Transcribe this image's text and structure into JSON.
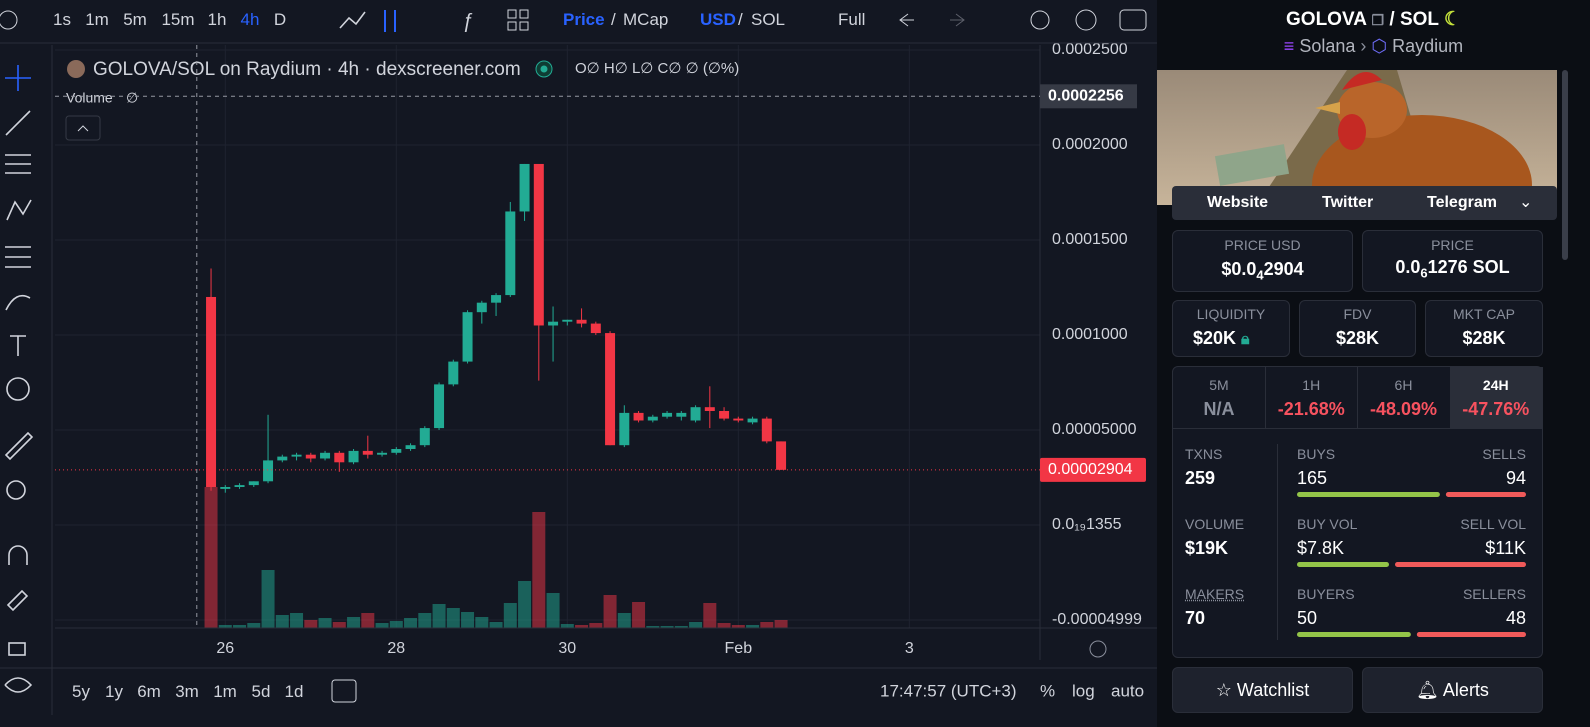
{
  "toolbar": {
    "intervals": [
      "1s",
      "1m",
      "5m",
      "15m",
      "1h",
      "4h",
      "D"
    ],
    "active_interval": 5,
    "price": "Price",
    "slash_1": "/",
    "mcap": "MCap",
    "usd": "USD",
    "slash_2": "/",
    "sol": "SOL",
    "full": "Full"
  },
  "chart": {
    "type": "candlestick",
    "title": "GOLOVA/SOL on Raydium · 4h · dexscreener.com",
    "ohlc_legend": "O∅ H∅ L∅ C∅ ∅ (∅%)",
    "volume_label": "Volume",
    "volume_value": "∅",
    "up_color": "#22ab94",
    "down_color": "#f23645",
    "grid": true,
    "open": [
      0.00012,
      1.9e-05,
      2e-05,
      2.1e-05,
      2.3e-05,
      3.4e-05,
      3.6e-05,
      3.7e-05,
      3.5e-05,
      3.8e-05,
      3.3e-05,
      3.9e-05,
      3.7e-05,
      3.8e-05,
      4e-05,
      4.2e-05,
      5.1e-05,
      7.4e-05,
      8.6e-05,
      0.000112,
      0.000117,
      0.000121,
      0.000165,
      0.00019,
      0.000105,
      0.000107,
      0.000108,
      0.000106,
      0.000101,
      4.2e-05,
      5.9e-05,
      5.5e-05,
      5.7e-05,
      5.7e-05,
      5.5e-05,
      6.2e-05,
      6e-05,
      5.6e-05,
      5.4e-05,
      5.6e-05,
      4.4e-05
    ],
    "high": [
      0.000135,
      2.1e-05,
      2.2e-05,
      2.3e-05,
      5.8e-05,
      3.7e-05,
      3.8e-05,
      3.8e-05,
      3.9e-05,
      3.9e-05,
      4e-05,
      4.7e-05,
      3.9e-05,
      4.1e-05,
      4.3e-05,
      5.2e-05,
      7.5e-05,
      8.7e-05,
      0.000113,
      0.000118,
      0.000122,
      0.00017,
      0.00019,
      0.00019,
      0.000115,
      0.000108,
      0.000114,
      0.000107,
      0.000102,
      6.3e-05,
      6e-05,
      5.8e-05,
      6e-05,
      6e-05,
      6.3e-05,
      7.3e-05,
      6.2e-05,
      5.7e-05,
      5.7e-05,
      5.7e-05,
      4.4e-05
    ],
    "low": [
      1.8e-05,
      1.7e-05,
      1.9e-05,
      2e-05,
      2.2e-05,
      3.3e-05,
      3.4e-05,
      3.3e-05,
      3.4e-05,
      2.8e-05,
      3.2e-05,
      3.5e-05,
      3.6e-05,
      3.7e-05,
      3.9e-05,
      4.1e-05,
      5e-05,
      7.3e-05,
      8.5e-05,
      0.000106,
      0.00011,
      0.00012,
      0.00016,
      7.6e-05,
      8.6e-05,
      0.000105,
      0.000104,
      0.0001,
      4.2e-05,
      4.1e-05,
      5.4e-05,
      5.4e-05,
      5.6e-05,
      5.5e-05,
      5.4e-05,
      5.1e-05,
      5.5e-05,
      5.4e-05,
      5.3e-05,
      4.3e-05,
      2.9e-05
    ],
    "close": [
      2e-05,
      2e-05,
      2.1e-05,
      2.3e-05,
      3.4e-05,
      3.6e-05,
      3.7e-05,
      3.5e-05,
      3.8e-05,
      3.3e-05,
      3.9e-05,
      3.7e-05,
      3.8e-05,
      4e-05,
      4.2e-05,
      5.1e-05,
      7.4e-05,
      8.6e-05,
      0.000112,
      0.000117,
      0.000121,
      0.000165,
      0.00019,
      0.000105,
      0.000107,
      0.000108,
      0.000106,
      0.000101,
      4.2e-05,
      5.9e-05,
      5.5e-05,
      5.7e-05,
      5.9e-05,
      5.9e-05,
      6.2e-05,
      6e-05,
      5.6e-05,
      5.5e-05,
      5.6e-05,
      4.4e-05,
      2.904e-05
    ],
    "volume": [
      141,
      3,
      3,
      5,
      58,
      13,
      15,
      8,
      10,
      6,
      11,
      15,
      5,
      7,
      10,
      15,
      24,
      20,
      16,
      11,
      6,
      25,
      47,
      116,
      35,
      4,
      3,
      5,
      33,
      15,
      26,
      2,
      2,
      2,
      6,
      25,
      5,
      3,
      3,
      6,
      8
    ],
    "xlim": [
      -10.95,
      58.17
    ],
    "xticks": [
      {
        "value": 1,
        "label": "26"
      },
      {
        "value": 13,
        "label": "28"
      },
      {
        "value": 25,
        "label": "30"
      },
      {
        "value": 37,
        "label": "Feb"
      },
      {
        "value": 49,
        "label": "3"
      }
    ],
    "ylim": [
      -5.42e-05,
      0.0002526
    ],
    "yticks": [
      {
        "value": 0.00025,
        "label": "0.0002500"
      },
      {
        "value": 0.0002,
        "label": "0.0002000"
      },
      {
        "value": 0.00015,
        "label": "0.0001500"
      },
      {
        "value": 0.0001,
        "label": "0.0001000"
      },
      {
        "value": 5e-05,
        "label": "0.00005000"
      },
      {
        "value": 1.355e-20,
        "label": "0.0₁₉1355"
      },
      -4.999e-05
    ],
    "crosshair_price": 0.0002256,
    "crosshair_index": -1,
    "last_price": 2.904e-05
  },
  "bottom": {
    "ranges": [
      "5y",
      "1y",
      "6m",
      "3m",
      "1m",
      "5d",
      "1d"
    ],
    "clock": "17:47:57 (UTC+3)",
    "percent": "%",
    "log": "log",
    "auto": "auto"
  },
  "pair": {
    "base": "GOLOVA",
    "slash": "/",
    "quote": "SOL",
    "chain": "Solana",
    "dex": "Raydium"
  },
  "links": [
    "Website",
    "Twitter",
    "Telegram"
  ],
  "price_usd": {
    "label": "PRICE USD",
    "prefix": "$0.0",
    "zeros": "4",
    "digits": "2904"
  },
  "price_native": {
    "label": "PRICE",
    "prefix": "0.0",
    "zeros": "6",
    "digits": "1276 SOL"
  },
  "liquidity": {
    "label": "LIQUIDITY",
    "value": "$20K"
  },
  "fdv": {
    "label": "FDV",
    "value": "$28K"
  },
  "mkt_cap": {
    "label": "MKT CAP",
    "value": "$28K"
  },
  "timeframes": [
    {
      "label": "5M",
      "change": "N/A"
    },
    {
      "label": "1H",
      "change": "-21.68%"
    },
    {
      "label": "6H",
      "change": "-48.09%"
    },
    {
      "label": "24H",
      "change": "-47.76%"
    }
  ],
  "active_timeframe": 3,
  "stats": {
    "txns_label": "TXNS",
    "txns": 259,
    "buys_label": "BUYS",
    "buys": 165,
    "sells_label": "SELLS",
    "sells": 94,
    "volume_label": "VOLUME",
    "volume": "$19K",
    "buy_vol_label": "BUY VOL",
    "buy_vol": {
      "value": 7800,
      "label": "$7.8K"
    },
    "sell_vol_label": "SELL VOL",
    "sell_vol": {
      "value": 11000,
      "label": "$11K"
    },
    "makers_label": "MAKERS",
    "makers": 70,
    "buyers_label": "BUYERS",
    "buyers": 50,
    "sellers_label": "SELLERS",
    "sellers": 48
  },
  "buttons": [
    "Watchlist",
    "Alerts"
  ]
}
